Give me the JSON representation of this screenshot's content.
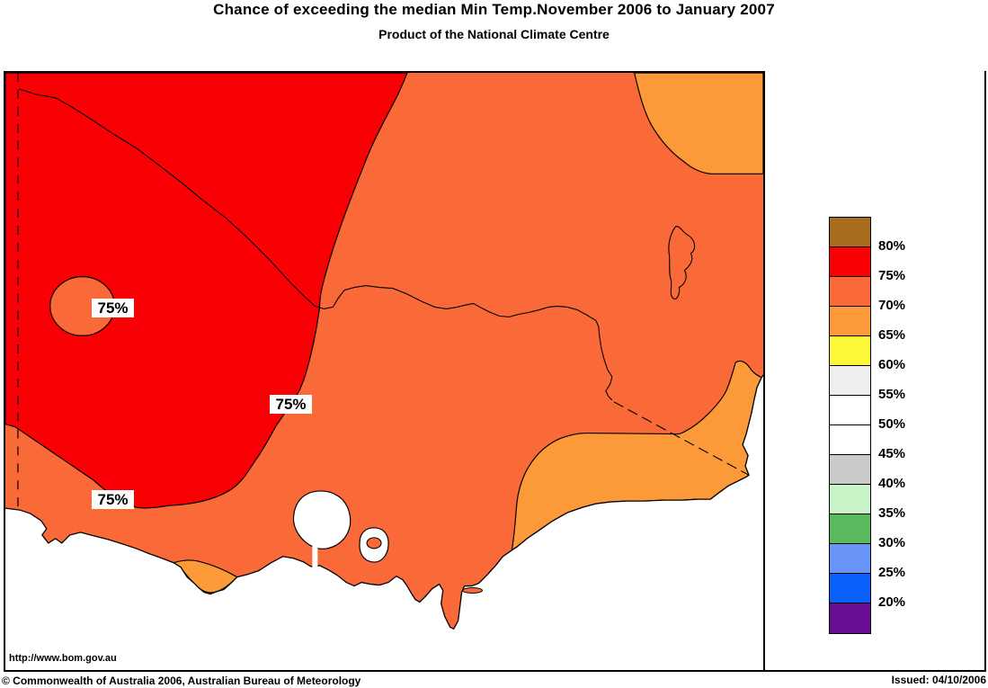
{
  "header": {
    "title": "Chance of exceeding the median Min Temp.November 2006 to January 2007",
    "subtitle": "Product of the National Climate Centre"
  },
  "map": {
    "url_label": "http://www.bom.gov.au",
    "labels": [
      {
        "text": "75%"
      },
      {
        "text": "75%"
      },
      {
        "text": "75%"
      }
    ],
    "colors": {
      "chance_75_80": "#f90005",
      "chance_70_75": "#fa6a38",
      "chance_65_70": "#fc9939",
      "ocean": "#ffffff",
      "line": "#000000"
    }
  },
  "legend": {
    "swatch_colors": [
      "#a86d1d",
      "#f90005",
      "#fa6a38",
      "#fc9939",
      "#fcf839",
      "#efefef",
      "#ffffff",
      "#ffffff",
      "#cbcbcb",
      "#c8f5c8",
      "#5aba5e",
      "#6a95f8",
      "#0a60fa",
      "#680e94"
    ],
    "tick_labels": [
      "80%",
      "75%",
      "70%",
      "65%",
      "60%",
      "55%",
      "50%",
      "45%",
      "40%",
      "35%",
      "30%",
      "25%",
      "20%"
    ]
  },
  "footer": {
    "copyright": "© Commonwealth of Australia 2006, Australian Bureau of Meteorology",
    "issued": "Issued: 04/10/2006"
  }
}
